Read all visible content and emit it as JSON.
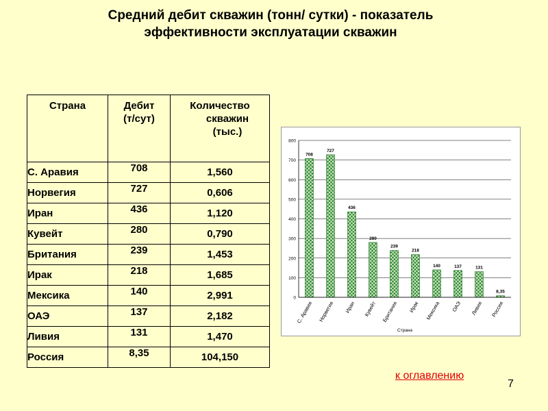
{
  "title": {
    "line1": "Средний дебит скважин (тонн/ сутки) - показатель",
    "line2": "эффективности эксплуатации скважин"
  },
  "table": {
    "headers": {
      "country": "Страна",
      "debit_line1": "Дебит",
      "debit_line2": "(т/сут)",
      "wells_line1": "Количество",
      "wells_line2": "скважин",
      "wells_line3": "(тыс.)"
    },
    "rows": [
      {
        "country": "С. Аравия",
        "debit": "708",
        "wells": "1,560"
      },
      {
        "country": "Норвегия",
        "debit": "727",
        "wells": "0,606"
      },
      {
        "country": "Иран",
        "debit": "436",
        "wells": "1,120"
      },
      {
        "country": "Кувейт",
        "debit": "280",
        "wells": "0,790"
      },
      {
        "country": "Британия",
        "debit": "239",
        "wells": "1,453"
      },
      {
        "country": "Ирак",
        "debit": "218",
        "wells": "1,685"
      },
      {
        "country": "Мексика",
        "debit": "140",
        "wells": "2,991"
      },
      {
        "country": "ОАЭ",
        "debit": "137",
        "wells": "2,182"
      },
      {
        "country": "Ливия",
        "debit": "131",
        "wells": "1,470"
      },
      {
        "country": "Россия",
        "debit": "8,35",
        "wells": "104,150"
      }
    ]
  },
  "chart_data": {
    "type": "bar",
    "categories": [
      "С. Аравия",
      "Норвегия",
      "Иран",
      "Кувейт",
      "Британия",
      "Ирак",
      "Мексика",
      "ОАЭ",
      "Ливия",
      "Россия"
    ],
    "values": [
      708,
      727,
      436,
      280,
      239,
      218,
      140,
      137,
      131,
      8.35
    ],
    "data_labels": [
      "708",
      "727",
      "436",
      "280",
      "239",
      "218",
      "140",
      "137",
      "131",
      "8,35"
    ],
    "title": "",
    "xlabel": "Страна",
    "ylabel": "",
    "ylim": [
      0,
      800
    ],
    "y_ticks": [
      0,
      100,
      200,
      300,
      400,
      500,
      600,
      700,
      800
    ],
    "grid": true,
    "legend": "none",
    "bar_fill": "#339933",
    "bar_pattern": "crosshatch"
  },
  "footer": {
    "toc_link": "к оглавлению",
    "page_number": "7"
  }
}
